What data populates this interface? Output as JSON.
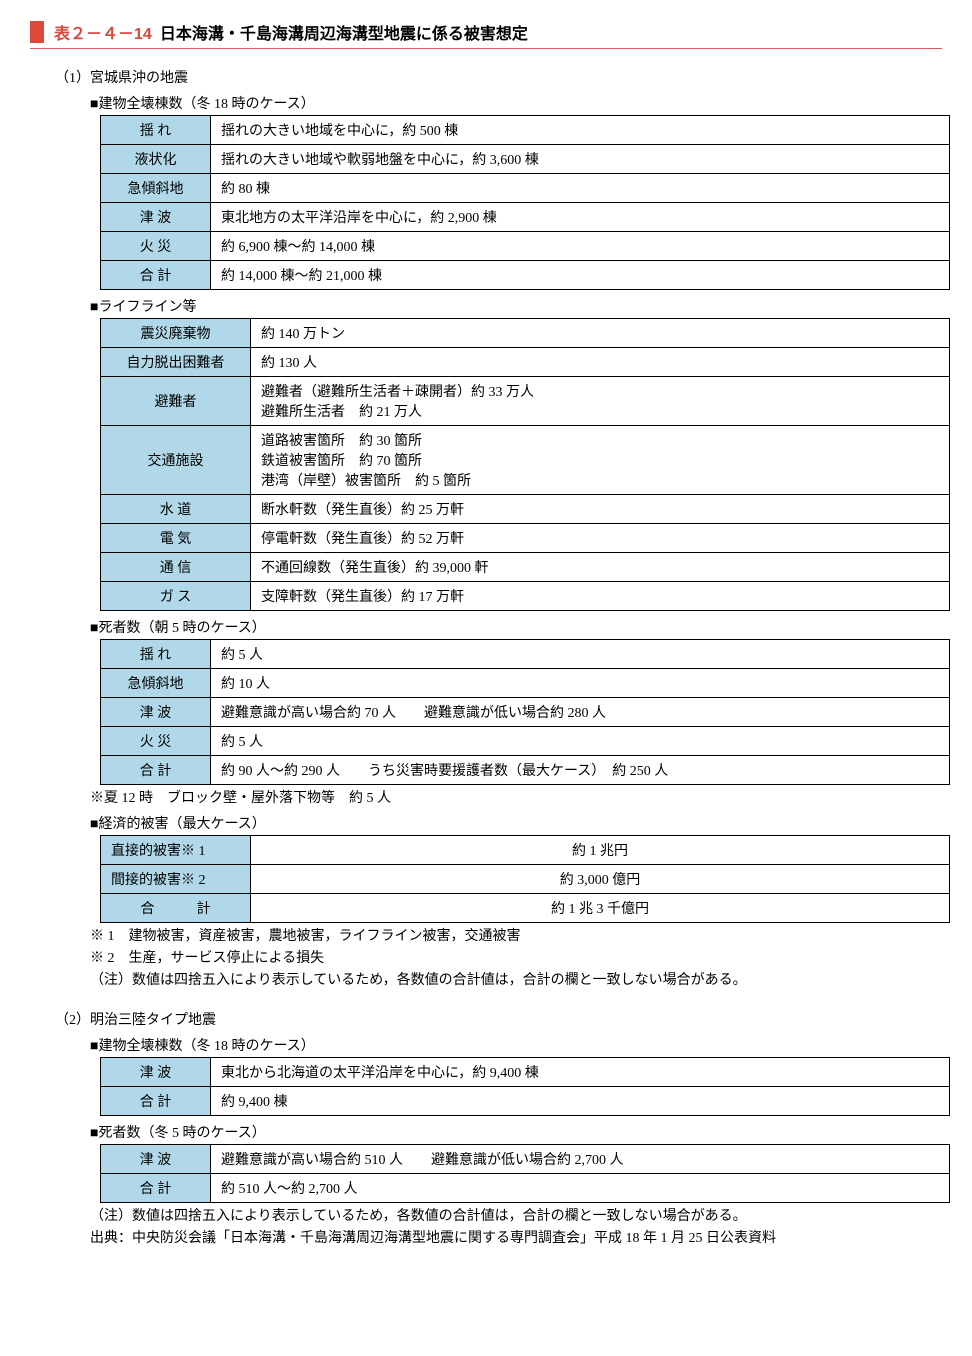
{
  "colors": {
    "accent_red": "#dc483c",
    "header_cell_bg": "#b0d8e8",
    "border": "#000000",
    "hr": "#d85a5a"
  },
  "title": {
    "prefix": "表２－４－14",
    "text": "日本海溝・千島海溝周辺海溝型地震に係る被害想定"
  },
  "s1_heading": "（1）宮城県沖の地震",
  "s1_t1_title": "■建物全壊棟数（冬 18 時のケース）",
  "s1_t1": [
    [
      "揺 れ",
      "揺れの大きい地域を中心に，約 500 棟"
    ],
    [
      "液状化",
      "揺れの大きい地域や軟弱地盤を中心に，約 3,600 棟"
    ],
    [
      "急傾斜地",
      "約 80 棟"
    ],
    [
      "津 波",
      "東北地方の太平洋沿岸を中心に，約 2,900 棟"
    ],
    [
      "火 災",
      "約 6,900 棟～約 14,000 棟"
    ],
    [
      "合 計",
      "約 14,000 棟～約 21,000 棟"
    ]
  ],
  "s1_t2_title": "■ライフライン等",
  "s1_t2": [
    [
      "震災廃棄物",
      "約 140 万トン"
    ],
    [
      "自力脱出困難者",
      "約 130 人"
    ],
    [
      "避難者",
      "避難者（避難所生活者＋疎開者）約 33 万人\n避難所生活者　約 21 万人"
    ],
    [
      "交通施設",
      "道路被害箇所　約 30 箇所\n鉄道被害箇所　約 70 箇所\n港湾（岸壁）被害箇所　約 5 箇所"
    ],
    [
      "水 道",
      "断水軒数（発生直後）約 25 万軒"
    ],
    [
      "電 気",
      "停電軒数（発生直後）約 52 万軒"
    ],
    [
      "通 信",
      "不通回線数（発生直後）約 39,000 軒"
    ],
    [
      "ガ ス",
      "支障軒数（発生直後）約 17 万軒"
    ]
  ],
  "s1_t3_title": "■死者数（朝 5 時のケース）",
  "s1_t3": [
    [
      "揺 れ",
      "約 5 人"
    ],
    [
      "急傾斜地",
      "約 10 人"
    ],
    [
      "津 波",
      "避難意識が高い場合約 70 人　　避難意識が低い場合約 280 人"
    ],
    [
      "火 災",
      "約 5 人"
    ],
    [
      "合 計",
      "約 90 人～約 290 人　　うち災害時要援護者数（最大ケース）　約 250 人"
    ]
  ],
  "s1_t3_note": "※夏 12 時　ブロック壁・屋外落下物等　約 5 人",
  "s1_t4_title": "■経済的被害（最大ケース）",
  "s1_t4": [
    [
      "直接的被害※ 1",
      "約 1 兆円"
    ],
    [
      "間接的被害※ 2",
      "約 3,000 億円"
    ],
    [
      "合　　　計",
      "約 1 兆 3 千億円"
    ]
  ],
  "s1_notes": [
    "※ 1　建物被害，資産被害，農地被害，ライフライン被害，交通被害",
    "※ 2　生産，サービス停止による損失",
    "（注）数値は四捨五入により表示しているため，各数値の合計値は，合計の欄と一致しない場合がある。"
  ],
  "s2_heading": "（2）明治三陸タイプ地震",
  "s2_t1_title": "■建物全壊棟数（冬 18 時のケース）",
  "s2_t1": [
    [
      "津 波",
      "東北から北海道の太平洋沿岸を中心に，約 9,400 棟"
    ],
    [
      "合 計",
      "約 9,400 棟"
    ]
  ],
  "s2_t2_title": "■死者数（冬 5 時のケース）",
  "s2_t2": [
    [
      "津 波",
      "避難意識が高い場合約 510 人　　避難意識が低い場合約 2,700 人"
    ],
    [
      "合 計",
      "約 510 人～約 2,700 人"
    ]
  ],
  "s2_note": "（注）数値は四捨五入により表示しているため，各数値の合計値は，合計の欄と一致しない場合がある。",
  "source": "出典：中央防災会議「日本海溝・千島海溝周辺海溝型地震に関する専門調査会」平成 18 年 1 月 25 日公表資料"
}
